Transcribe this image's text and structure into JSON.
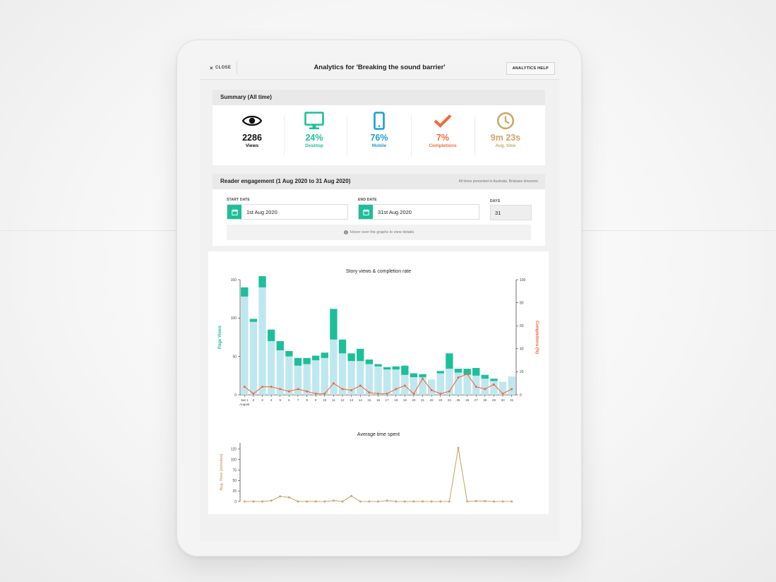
{
  "header": {
    "close_label": "CLOSE",
    "title": "Analytics for 'Breaking the sound barrier'",
    "help_label": "ANALYTICS HELP"
  },
  "summary": {
    "heading": "Summary (All time)",
    "stats": [
      {
        "value": "2286",
        "label": "Views",
        "icon": "eye-icon",
        "color": "#111111"
      },
      {
        "value": "24%",
        "label": "Desktop",
        "icon": "desktop-icon",
        "color": "#1cbf99"
      },
      {
        "value": "76%",
        "label": "Mobile",
        "icon": "mobile-icon",
        "color": "#1a9fd0"
      },
      {
        "value": "7%",
        "label": "Completions",
        "icon": "check-icon",
        "color": "#f26a3d"
      },
      {
        "value": "9m 23s",
        "label": "Avg. time",
        "icon": "clock-icon",
        "color": "#c9a86a"
      }
    ]
  },
  "engagement": {
    "heading": "Reader engagement (1 Aug 2020 to 31 Aug 2020)",
    "timezone_note": "All times presented in Australia, Brisbane timezone",
    "start_label": "START DATE",
    "start_value": "1st Aug 2020",
    "end_label": "END DATE",
    "end_value": "31st Aug 2020",
    "days_label": "DAYS",
    "days_value": "31",
    "hover_note": "Hover over the graphs to view details"
  },
  "colors": {
    "teal": "#1cbf99",
    "light_bar": "#bfe7ef",
    "orange": "#f26a3d",
    "gold": "#c9a86a"
  },
  "chart_data": [
    {
      "type": "bar",
      "title": "Story views & completion rate",
      "ylabel": "Page Views",
      "y2label": "Completions (%)",
      "x": [
        1,
        2,
        3,
        4,
        5,
        6,
        7,
        8,
        9,
        10,
        11,
        12,
        13,
        14,
        15,
        16,
        17,
        18,
        19,
        20,
        21,
        22,
        23,
        24,
        25,
        26,
        27,
        28,
        29,
        30,
        31
      ],
      "xlabel_first": "Sat 1",
      "xlabel_month": "August",
      "ylim": [
        0,
        150
      ],
      "y2lim": [
        0,
        100
      ],
      "yticks": [
        "0",
        "50",
        "100",
        "150"
      ],
      "y2ticks": [
        "0",
        "20",
        "40",
        "60",
        "80",
        "100"
      ],
      "series": [
        {
          "name": "Mobile",
          "values": [
            128,
            95,
            140,
            70,
            58,
            50,
            38,
            40,
            45,
            48,
            72,
            54,
            44,
            44,
            40,
            37,
            33,
            33,
            26,
            23,
            23,
            20,
            28,
            34,
            29,
            26,
            25,
            21,
            18,
            17,
            24
          ]
        },
        {
          "name": "Desktop",
          "values": [
            12,
            4,
            20,
            15,
            12,
            7,
            10,
            8,
            6,
            7,
            40,
            18,
            10,
            16,
            6,
            3,
            3,
            4,
            12,
            5,
            4,
            0,
            3,
            20,
            5,
            8,
            10,
            5,
            3,
            0,
            0
          ]
        },
        {
          "name": "Completions",
          "values": [
            7,
            1,
            7,
            7,
            5,
            3,
            5,
            3,
            1,
            1,
            10,
            5,
            4,
            8,
            2,
            1,
            1,
            5,
            8,
            1,
            14,
            4,
            1,
            3,
            15,
            18,
            7,
            5,
            9,
            1,
            5
          ]
        }
      ]
    },
    {
      "type": "line",
      "title": "Average time spent",
      "ylabel": "Avg. Time (minutes)",
      "ylim": [
        0,
        140
      ],
      "yticks": [
        "0",
        "25",
        "50",
        "75",
        "100",
        "125"
      ],
      "x": [
        1,
        2,
        3,
        4,
        5,
        6,
        7,
        8,
        9,
        10,
        11,
        12,
        13,
        14,
        15,
        16,
        17,
        18,
        19,
        20,
        21,
        22,
        23,
        24,
        25,
        26,
        27,
        28,
        29,
        30,
        31
      ],
      "series": [
        {
          "name": "Avg. time",
          "values": [
            0,
            0,
            0,
            2,
            12,
            10,
            0,
            0,
            0,
            0,
            2,
            0,
            13,
            0,
            0,
            0,
            2,
            0,
            0,
            0,
            0,
            0,
            0,
            0,
            128,
            0,
            1,
            1,
            0,
            0,
            0
          ]
        }
      ]
    }
  ]
}
